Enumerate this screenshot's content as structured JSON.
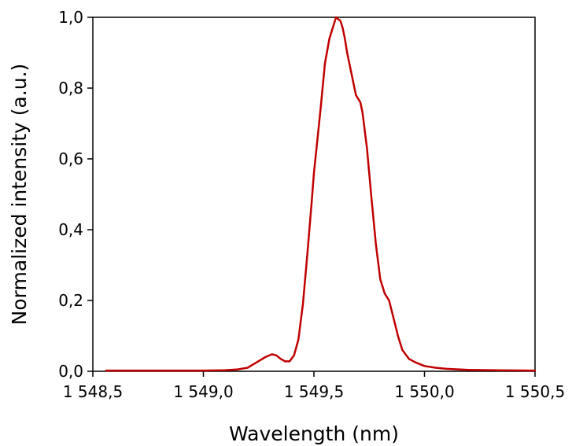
{
  "chart_data": {
    "type": "line",
    "title": "",
    "xlabel": "Wavelength (nm)",
    "ylabel": "Normalized intensity (a.u.)",
    "xlim": [
      1548.5,
      1550.5
    ],
    "ylim": [
      0.0,
      1.0
    ],
    "grid": false,
    "x_ticks": [
      1548.5,
      1549.0,
      1549.5,
      1550.0,
      1550.5
    ],
    "x_tick_labels": [
      "1 548,5",
      "1 549,0",
      "1 549,5",
      "1 550,0",
      "1 550,5"
    ],
    "y_ticks": [
      0.0,
      0.2,
      0.4,
      0.6,
      0.8,
      1.0
    ],
    "y_tick_labels": [
      "0,0",
      "0,2",
      "0,4",
      "0,6",
      "0,8",
      "1,0"
    ],
    "series": [
      {
        "color": "#c00000",
        "x": [
          1548.56,
          1548.8,
          1549.0,
          1549.1,
          1549.15,
          1549.2,
          1549.24,
          1549.28,
          1549.31,
          1549.33,
          1549.35,
          1549.37,
          1549.39,
          1549.41,
          1549.43,
          1549.45,
          1549.47,
          1549.49,
          1549.5,
          1549.51,
          1549.53,
          1549.55,
          1549.57,
          1549.59,
          1549.6,
          1549.61,
          1549.62,
          1549.63,
          1549.64,
          1549.65,
          1549.67,
          1549.69,
          1549.71,
          1549.72,
          1549.74,
          1549.76,
          1549.78,
          1549.8,
          1549.82,
          1549.84,
          1549.86,
          1549.88,
          1549.9,
          1549.93,
          1549.96,
          1550.0,
          1550.05,
          1550.1,
          1550.2,
          1550.3,
          1550.5
        ],
        "y": [
          0.002,
          0.002,
          0.002,
          0.003,
          0.005,
          0.01,
          0.025,
          0.04,
          0.048,
          0.045,
          0.035,
          0.028,
          0.028,
          0.045,
          0.09,
          0.19,
          0.33,
          0.48,
          0.56,
          0.62,
          0.74,
          0.87,
          0.94,
          0.98,
          1.0,
          0.995,
          0.99,
          0.97,
          0.94,
          0.9,
          0.84,
          0.78,
          0.76,
          0.73,
          0.63,
          0.49,
          0.36,
          0.26,
          0.22,
          0.2,
          0.15,
          0.1,
          0.06,
          0.035,
          0.025,
          0.015,
          0.01,
          0.007,
          0.004,
          0.003,
          0.002
        ]
      }
    ]
  }
}
